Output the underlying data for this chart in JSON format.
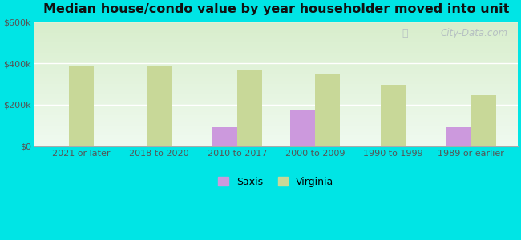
{
  "title": "Median house/condo value by year householder moved into unit",
  "categories": [
    "2021 or later",
    "2018 to 2020",
    "2010 to 2017",
    "2000 to 2009",
    "1990 to 1999",
    "1989 or earlier"
  ],
  "saxis_values": [
    null,
    null,
    90000,
    175000,
    null,
    90000
  ],
  "virginia_values": [
    390000,
    385000,
    370000,
    345000,
    295000,
    245000
  ],
  "saxis_color": "#cc99dd",
  "virginia_color": "#c8d898",
  "background_outer": "#00e5e5",
  "ylim": [
    0,
    600000
  ],
  "yticks": [
    0,
    200000,
    400000,
    600000
  ],
  "ytick_labels": [
    "$0",
    "$200k",
    "$400k",
    "$600k"
  ],
  "bar_width": 0.32,
  "legend_saxis": "Saxis",
  "legend_virginia": "Virginia",
  "watermark": "City-Data.com"
}
